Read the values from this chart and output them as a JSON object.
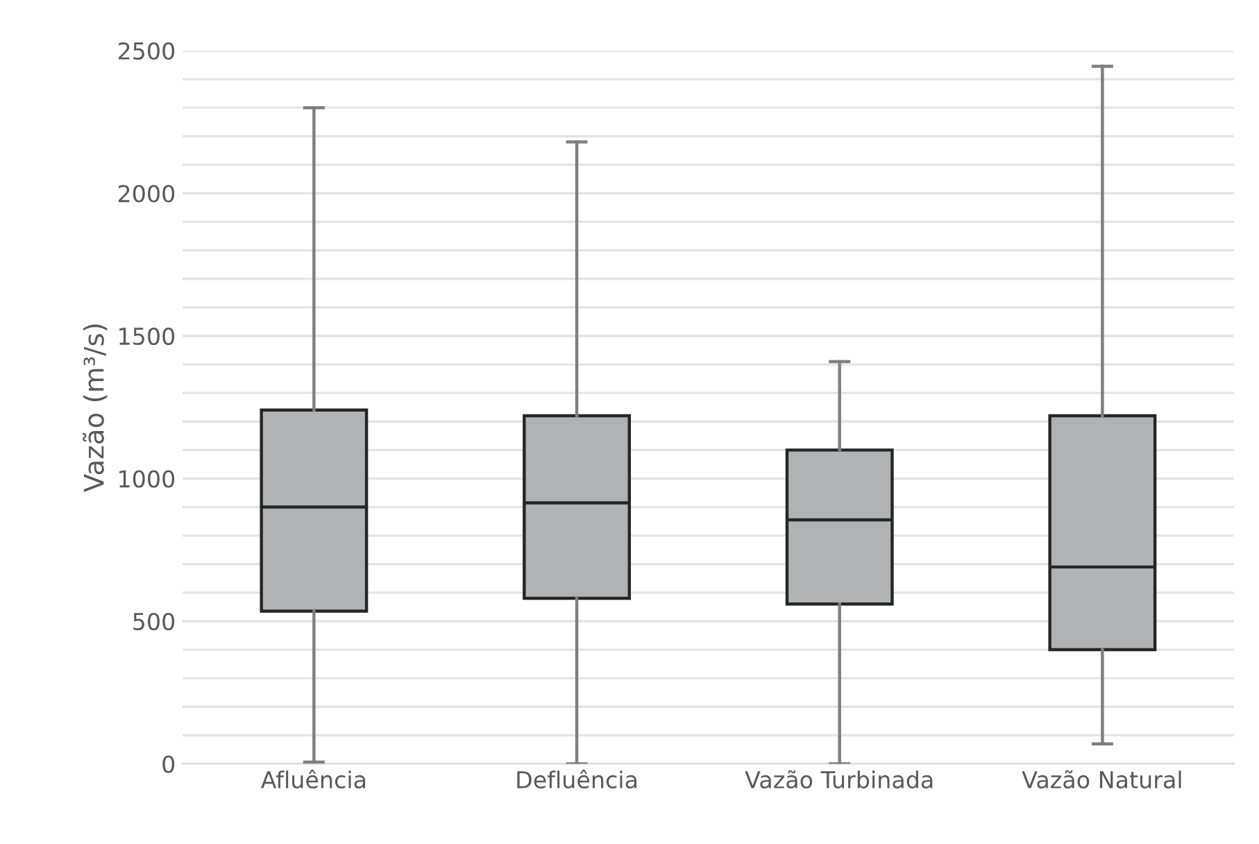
{
  "chart_data": {
    "type": "box",
    "ylabel": "Vazão (m³/s)",
    "categories": [
      "Afluência",
      "Defluência",
      "Vazão Turbinada",
      "Vazão Natural"
    ],
    "boxes": [
      {
        "low": 6,
        "q1": 535,
        "median": 900,
        "q3": 1240,
        "high": 2300
      },
      {
        "low": 0,
        "q1": 580,
        "median": 915,
        "q3": 1220,
        "high": 2180
      },
      {
        "low": 0,
        "q1": 560,
        "median": 855,
        "q3": 1100,
        "high": 1410
      },
      {
        "low": 70,
        "q1": 400,
        "median": 690,
        "q3": 1220,
        "high": 2445
      }
    ],
    "color": "#b1b2b4",
    "ylim": [
      0,
      2500
    ],
    "yticks": [
      0,
      {
        "value": 100,
        "label": null
      },
      {
        "value": 200,
        "label": null
      },
      {
        "value": 300,
        "label": null
      },
      {
        "value": 400,
        "label": null
      },
      500,
      {
        "value": 600,
        "label": null
      },
      {
        "value": 700,
        "label": null
      },
      {
        "value": 800,
        "label": null
      },
      {
        "value": 900,
        "label": null
      },
      1000,
      {
        "value": 1100,
        "label": null
      },
      {
        "value": 1200,
        "label": null
      },
      {
        "value": 1300,
        "label": null
      },
      {
        "value": 1400,
        "label": null
      },
      1500,
      {
        "value": 1600,
        "label": null
      },
      {
        "value": 1700,
        "label": null
      },
      {
        "value": 1800,
        "label": null
      },
      {
        "value": 1900,
        "label": null
      },
      2000,
      {
        "value": 2100,
        "label": null
      },
      {
        "value": 2200,
        "label": null
      },
      {
        "value": 2300,
        "label": null
      },
      {
        "value": 2400,
        "label": null
      },
      2500
    ],
    "grid": "y",
    "legend": false
  }
}
